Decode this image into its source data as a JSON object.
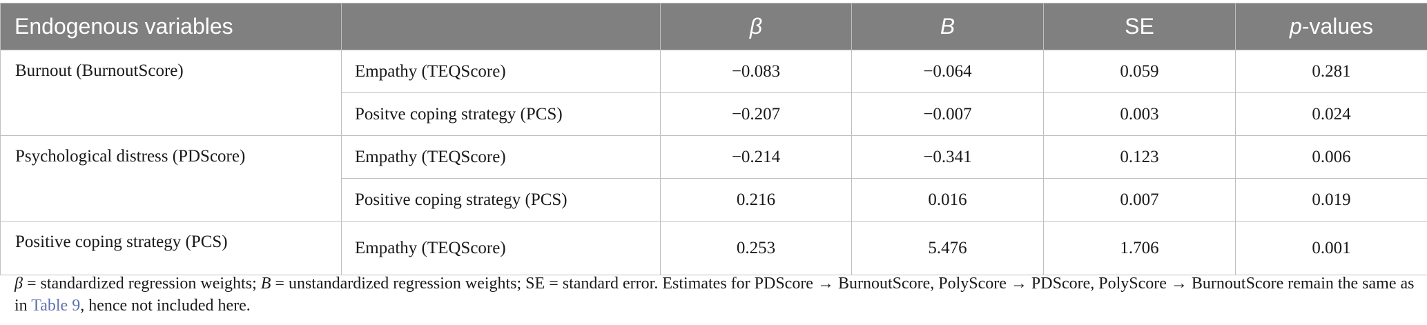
{
  "table": {
    "headers": {
      "endogenous": "Endogenous variables",
      "predictor": "",
      "beta": "β",
      "b": "B",
      "se": "SE",
      "p_italic": "p",
      "p_suffix": "-values"
    },
    "groups": [
      {
        "label": "Burnout (BurnoutScore)",
        "rows": [
          {
            "predictor": "Empathy (TEQScore)",
            "beta": "−0.083",
            "b": "−0.064",
            "se": "0.059",
            "p": "0.281"
          },
          {
            "predictor": "Positve coping strategy (PCS)",
            "beta": "−0.207",
            "b": "−0.007",
            "se": "0.003",
            "p": "0.024"
          }
        ]
      },
      {
        "label": "Psychological distress (PDScore)",
        "rows": [
          {
            "predictor": "Empathy (TEQScore)",
            "beta": "−0.214",
            "b": "−0.341",
            "se": "0.123",
            "p": "0.006"
          },
          {
            "predictor": "Positive coping strategy (PCS)",
            "beta": "0.216",
            "b": "0.016",
            "se": "0.007",
            "p": "0.019"
          }
        ]
      },
      {
        "label": "Positive coping strategy (PCS)",
        "rows": [
          {
            "predictor": "Empathy (TEQScore)",
            "beta": "0.253",
            "b": "5.476",
            "se": "1.706",
            "p": "0.001"
          }
        ]
      }
    ]
  },
  "footnote": {
    "beta_sym": "β",
    "beta_def": " = standardized regression weights; ",
    "b_sym": "B",
    "b_def": " = unstandardized regression weights; SE = standard error. Estimates for PDScore → BurnoutScore, PolyScore → PDScore, PolyScore → BurnoutScore remain the same as in ",
    "table_ref": "Table 9",
    "tail": ", hence not included here."
  }
}
